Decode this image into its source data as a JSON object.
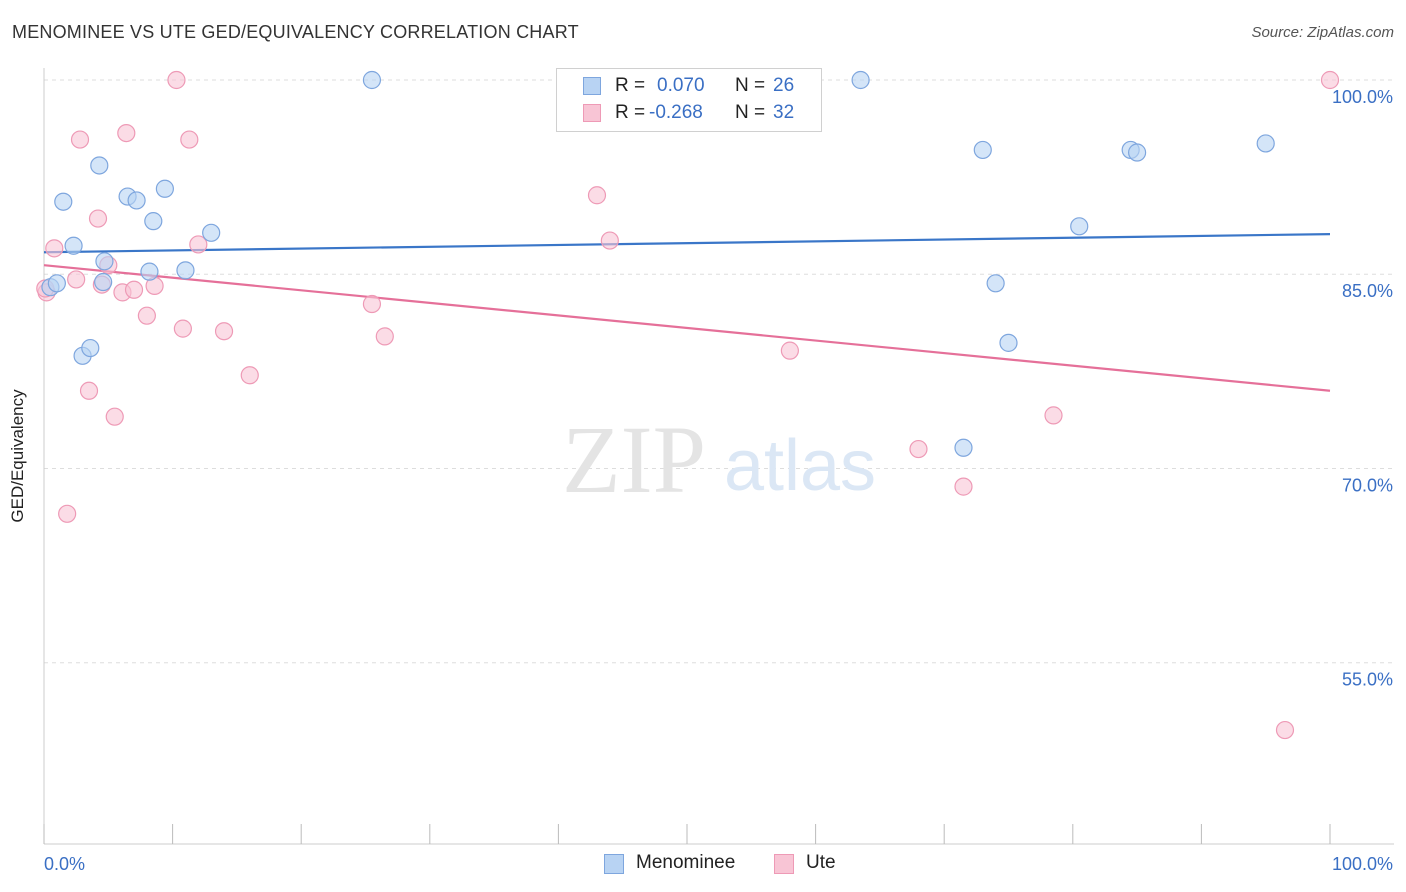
{
  "title": "MENOMINEE VS UTE GED/EQUIVALENCY CORRELATION CHART",
  "source": "Source: ZipAtlas.com",
  "watermark": {
    "zip": "ZIP",
    "atlas": "atlas"
  },
  "legend": {
    "rows": [
      {
        "r_label": "R =",
        "r_value": "0.070",
        "n_label": "N =",
        "n_value": "26"
      },
      {
        "r_label": "R =",
        "r_value": "-0.268",
        "n_label": "N =",
        "n_value": "32"
      }
    ]
  },
  "bottom_legend": [
    "Menominee",
    "Ute"
  ],
  "colors": {
    "menominee_fill": "#b8d3f3",
    "menominee_stroke": "#7ea6de",
    "menominee_line": "#3a76c8",
    "ute_fill": "#f8c5d5",
    "ute_stroke": "#ee9ab6",
    "ute_line": "#e57099",
    "axis_text": "#3a6fc4",
    "grid": "#dddddd"
  },
  "chart_data": {
    "type": "scatter",
    "ylabel": "GED/Equivalency",
    "xlabel": "",
    "xlim": [
      0,
      100
    ],
    "ylim": [
      41,
      100
    ],
    "x_tick_labels": [
      "0.0%",
      "100.0%"
    ],
    "y_ticks": [
      100,
      85,
      70,
      55
    ],
    "y_tick_labels": [
      "100.0%",
      "85.0%",
      "70.0%",
      "55.0%"
    ],
    "grid": true,
    "series": [
      {
        "name": "Menominee",
        "points": [
          [
            0.5,
            84.0
          ],
          [
            1.0,
            84.3
          ],
          [
            1.5,
            90.6
          ],
          [
            2.3,
            87.2
          ],
          [
            3.0,
            78.7
          ],
          [
            3.6,
            79.3
          ],
          [
            4.3,
            93.4
          ],
          [
            4.6,
            84.4
          ],
          [
            4.7,
            86.0
          ],
          [
            6.5,
            91.0
          ],
          [
            7.2,
            90.7
          ],
          [
            8.2,
            85.2
          ],
          [
            8.5,
            89.1
          ],
          [
            9.4,
            91.6
          ],
          [
            11.0,
            85.3
          ],
          [
            13.0,
            88.2
          ],
          [
            25.5,
            100.0
          ],
          [
            63.5,
            100.0
          ],
          [
            84.5,
            94.6
          ],
          [
            95.0,
            95.1
          ],
          [
            85.0,
            94.4
          ],
          [
            73.0,
            94.6
          ],
          [
            74.0,
            84.3
          ],
          [
            75.0,
            79.7
          ],
          [
            80.5,
            88.7
          ],
          [
            71.5,
            71.6
          ]
        ],
        "trend": [
          [
            0,
            86.7
          ],
          [
            100,
            88.1
          ]
        ]
      },
      {
        "name": "Ute",
        "points": [
          [
            0.2,
            83.6
          ],
          [
            0.8,
            87.0
          ],
          [
            1.8,
            66.5
          ],
          [
            2.5,
            84.6
          ],
          [
            2.8,
            95.4
          ],
          [
            3.5,
            76.0
          ],
          [
            4.2,
            89.3
          ],
          [
            4.5,
            84.2
          ],
          [
            5.0,
            85.7
          ],
          [
            5.5,
            74.0
          ],
          [
            6.1,
            83.6
          ],
          [
            6.4,
            95.9
          ],
          [
            7.0,
            83.8
          ],
          [
            8.0,
            81.8
          ],
          [
            8.6,
            84.1
          ],
          [
            10.3,
            100.0
          ],
          [
            10.8,
            80.8
          ],
          [
            11.3,
            95.4
          ],
          [
            12.0,
            87.3
          ],
          [
            14.0,
            80.6
          ],
          [
            16.0,
            77.2
          ],
          [
            25.5,
            82.7
          ],
          [
            26.5,
            80.2
          ],
          [
            43.0,
            91.1
          ],
          [
            44.0,
            87.6
          ],
          [
            58.0,
            79.1
          ],
          [
            68.0,
            71.5
          ],
          [
            71.5,
            68.6
          ],
          [
            78.5,
            74.1
          ],
          [
            96.5,
            49.8
          ],
          [
            100.0,
            100.0
          ],
          [
            0.1,
            83.9
          ]
        ],
        "trend": [
          [
            0,
            85.7
          ],
          [
            100,
            76.0
          ]
        ]
      }
    ]
  }
}
